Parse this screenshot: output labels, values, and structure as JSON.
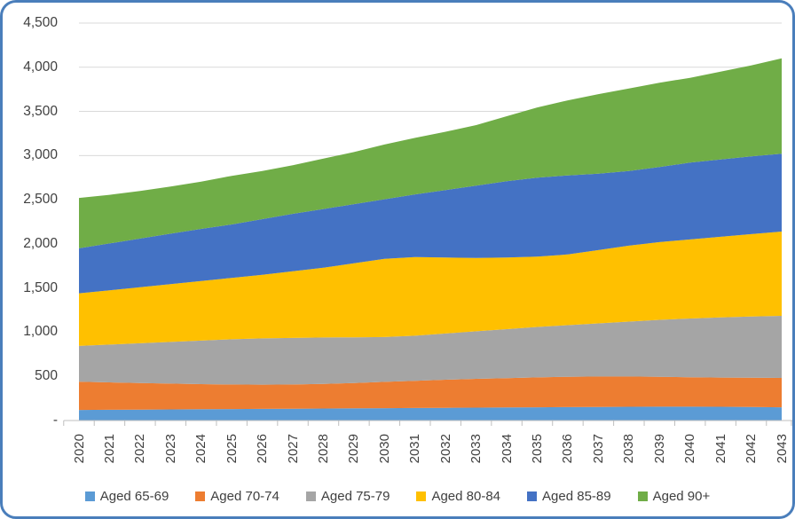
{
  "chart_data": {
    "type": "area",
    "stacked": true,
    "title": "",
    "xlabel": "",
    "ylabel": "",
    "grid": true,
    "legend_position": "bottom",
    "ylim": [
      0,
      4500
    ],
    "y_ticks": [
      {
        "value": 0,
        "label": "-"
      },
      {
        "value": 500,
        "label": "500"
      },
      {
        "value": 1000,
        "label": "1,000"
      },
      {
        "value": 1500,
        "label": "1,500"
      },
      {
        "value": 2000,
        "label": "2,000"
      },
      {
        "value": 2500,
        "label": "2,500"
      },
      {
        "value": 3000,
        "label": "3,000"
      },
      {
        "value": 3500,
        "label": "3,500"
      },
      {
        "value": 4000,
        "label": "4,000"
      },
      {
        "value": 4500,
        "label": "4,500"
      }
    ],
    "x": [
      "2020",
      "2021",
      "2022",
      "2023",
      "2024",
      "2025",
      "2026",
      "2027",
      "2028",
      "2029",
      "2030",
      "2031",
      "2032",
      "2033",
      "2034",
      "2035",
      "2036",
      "2037",
      "2038",
      "2039",
      "2040",
      "2041",
      "2042",
      "2043"
    ],
    "series": [
      {
        "name": "Aged 65-69",
        "color": "#5B9BD5",
        "values": [
          120,
          122,
          124,
          126,
          128,
          130,
          132,
          134,
          136,
          138,
          140,
          142,
          144,
          146,
          148,
          150,
          152,
          154,
          156,
          157,
          157,
          156,
          153,
          150
        ]
      },
      {
        "name": "Aged 70-74",
        "color": "#ED7D31",
        "values": [
          320,
          310,
          301,
          292,
          284,
          278,
          274,
          274,
          279,
          287,
          298,
          308,
          318,
          326,
          332,
          338,
          343,
          344,
          342,
          338,
          333,
          330,
          331,
          332
        ]
      },
      {
        "name": "Aged 75-79",
        "color": "#A5A5A5",
        "values": [
          405,
          428,
          450,
          472,
          493,
          512,
          524,
          527,
          525,
          517,
          507,
          510,
          523,
          538,
          555,
          572,
          585,
          602,
          622,
          645,
          665,
          682,
          694,
          703
        ]
      },
      {
        "name": "Aged 80-84",
        "color": "#FFC000",
        "values": [
          595,
          615,
          635,
          655,
          675,
          695,
          720,
          755,
          790,
          838,
          885,
          890,
          860,
          830,
          810,
          795,
          800,
          830,
          860,
          880,
          895,
          912,
          932,
          955
        ]
      },
      {
        "name": "Aged 85-89",
        "color": "#4472C4",
        "values": [
          510,
          530,
          550,
          570,
          590,
          605,
          630,
          650,
          665,
          670,
          675,
          710,
          765,
          820,
          865,
          895,
          895,
          865,
          845,
          850,
          870,
          875,
          880,
          880
        ]
      },
      {
        "name": "Aged 90+",
        "color": "#70AD47",
        "values": [
          570,
          550,
          540,
          535,
          535,
          550,
          545,
          550,
          570,
          590,
          620,
          640,
          660,
          685,
          735,
          795,
          850,
          900,
          935,
          955,
          960,
          995,
          1030,
          1080
        ]
      }
    ]
  },
  "colors": {
    "frame_border": "#4A7EBB",
    "gridline": "#D9D9D9",
    "axis_line": "#BFBFBF",
    "text": "#3f3f3f"
  }
}
